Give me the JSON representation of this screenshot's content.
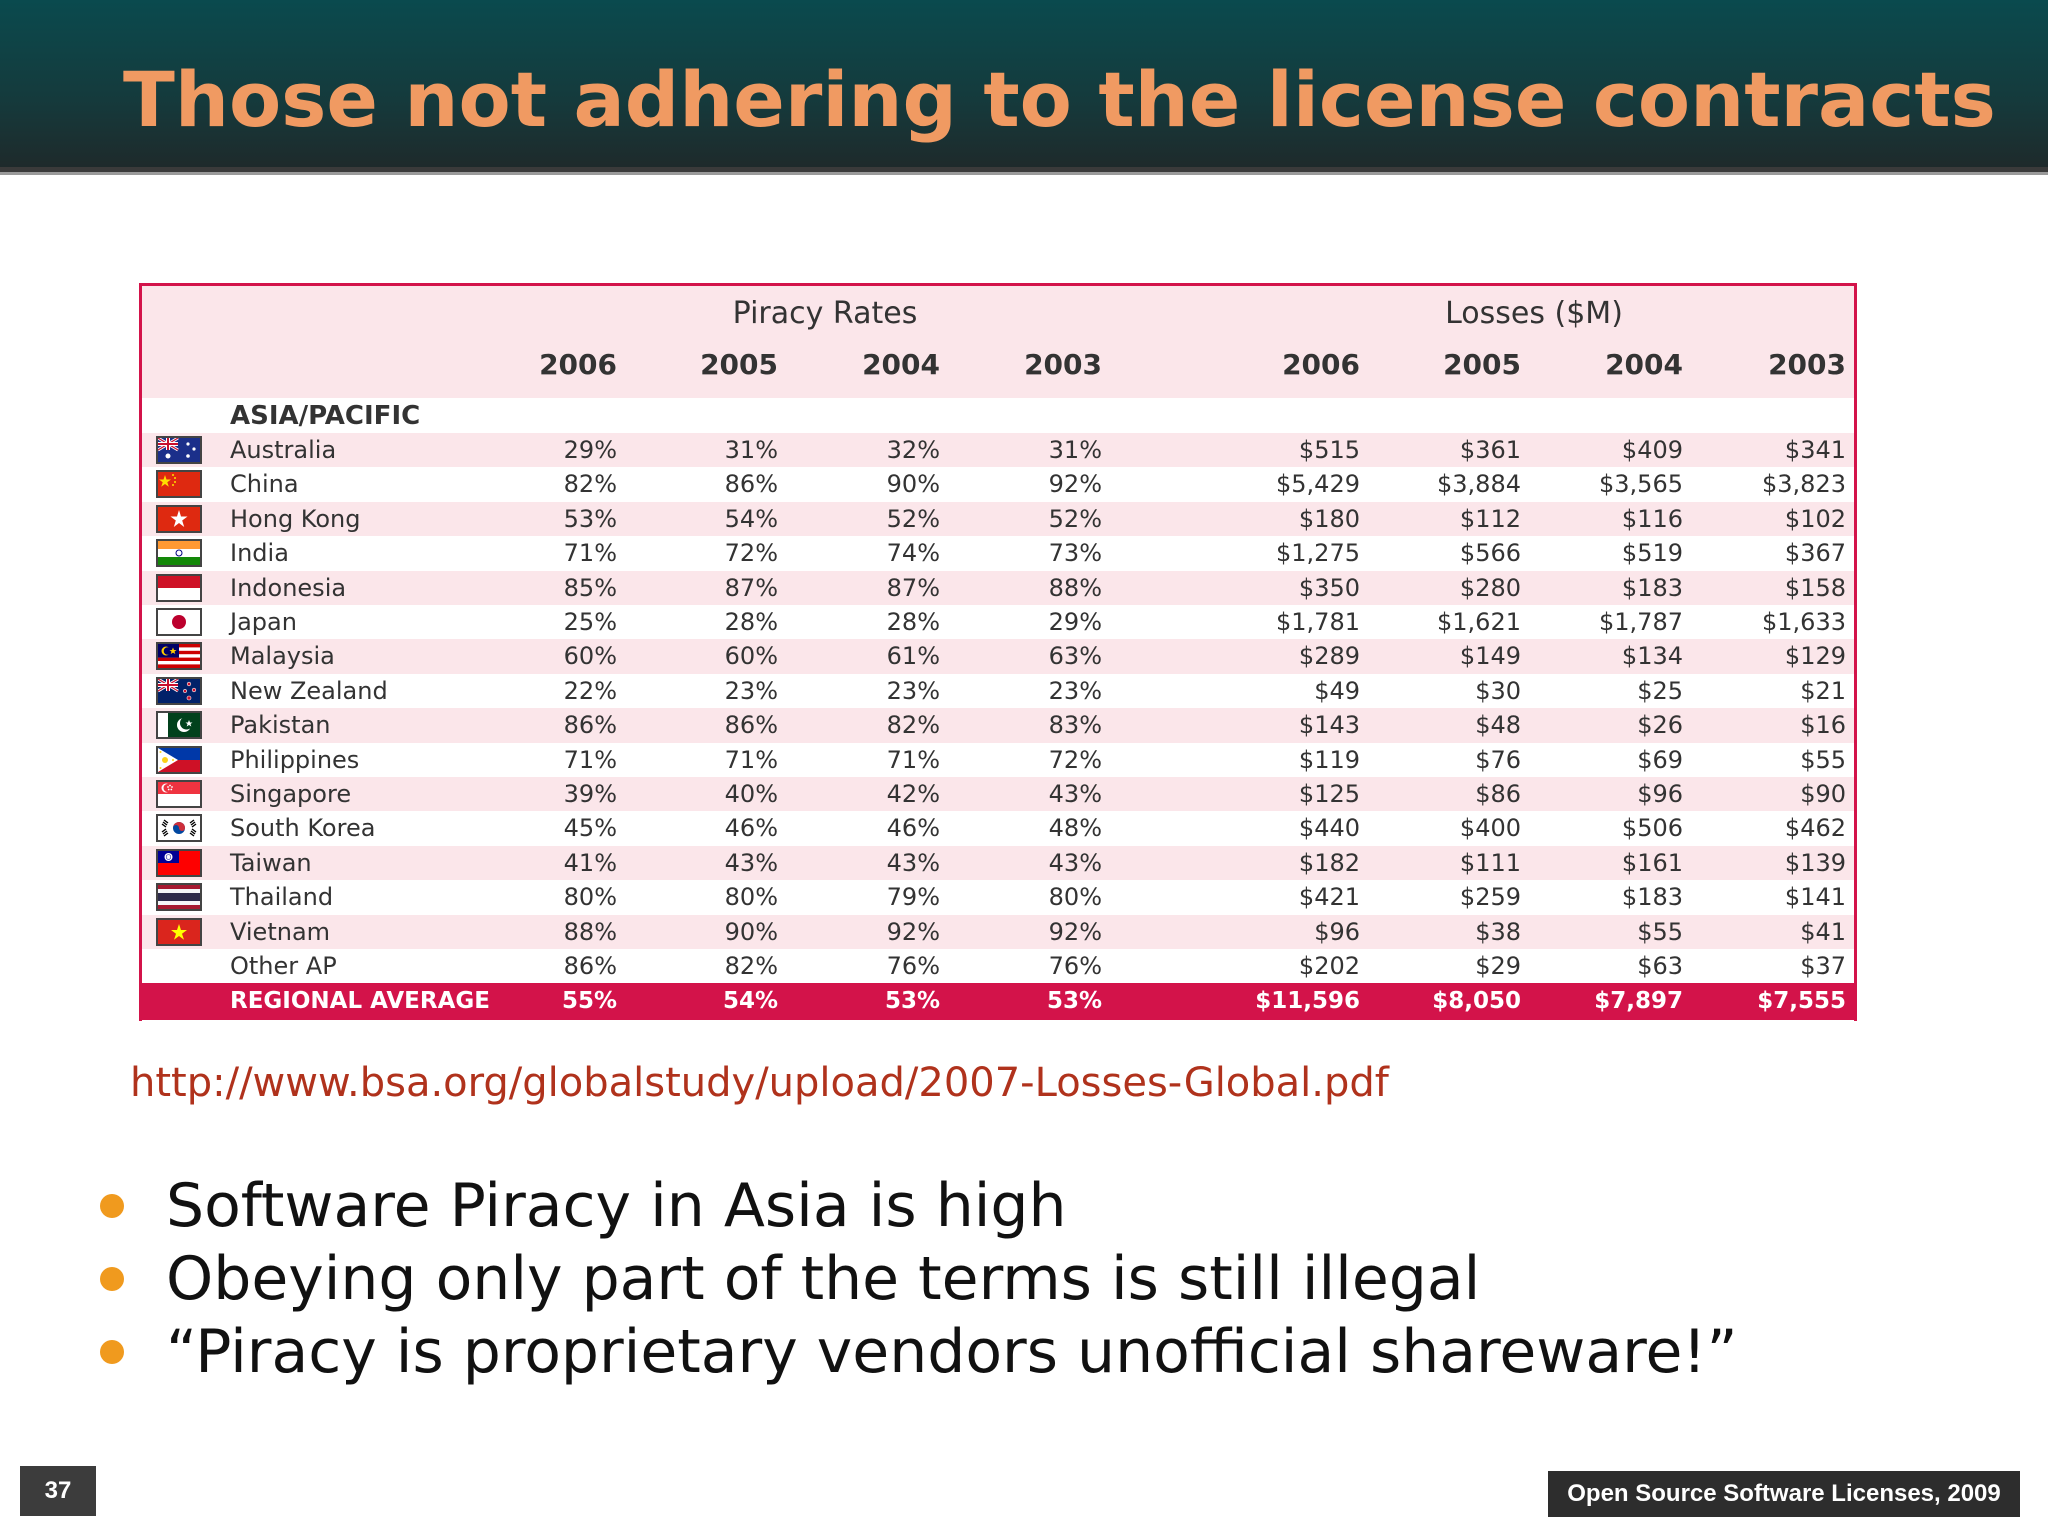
{
  "slide": {
    "title": "Those not adhering to the license contracts",
    "url": "http://www.bsa.org/globalstudy/upload/2007-Losses-Global.pdf",
    "bullets": [
      "Software Piracy in Asia is high",
      "Obeying only part of the terms is still illegal",
      "“Piracy is proprietary vendors unofficial shareware!”"
    ],
    "page_number": "37",
    "footer": "Open Source Software Licenses, 2009"
  },
  "table": {
    "group_headers": [
      "Piracy Rates",
      "Losses ($M)"
    ],
    "years": [
      "2006",
      "2005",
      "2004",
      "2003",
      "2006",
      "2005",
      "2004",
      "2003"
    ],
    "section": "ASIA/PACIFIC",
    "rows": [
      {
        "country": "Australia",
        "flag": "australia-flag-icon",
        "values": [
          "29%",
          "31%",
          "32%",
          "31%",
          "$515",
          "$361",
          "$409",
          "$341"
        ]
      },
      {
        "country": "China",
        "flag": "china-flag-icon",
        "values": [
          "82%",
          "86%",
          "90%",
          "92%",
          "$5,429",
          "$3,884",
          "$3,565",
          "$3,823"
        ]
      },
      {
        "country": "Hong Kong",
        "flag": "hong-kong-flag-icon",
        "values": [
          "53%",
          "54%",
          "52%",
          "52%",
          "$180",
          "$112",
          "$116",
          "$102"
        ]
      },
      {
        "country": "India",
        "flag": "india-flag-icon",
        "values": [
          "71%",
          "72%",
          "74%",
          "73%",
          "$1,275",
          "$566",
          "$519",
          "$367"
        ]
      },
      {
        "country": "Indonesia",
        "flag": "indonesia-flag-icon",
        "values": [
          "85%",
          "87%",
          "87%",
          "88%",
          "$350",
          "$280",
          "$183",
          "$158"
        ]
      },
      {
        "country": "Japan",
        "flag": "japan-flag-icon",
        "values": [
          "25%",
          "28%",
          "28%",
          "29%",
          "$1,781",
          "$1,621",
          "$1,787",
          "$1,633"
        ]
      },
      {
        "country": "Malaysia",
        "flag": "malaysia-flag-icon",
        "values": [
          "60%",
          "60%",
          "61%",
          "63%",
          "$289",
          "$149",
          "$134",
          "$129"
        ]
      },
      {
        "country": "New Zealand",
        "flag": "new-zealand-flag-icon",
        "values": [
          "22%",
          "23%",
          "23%",
          "23%",
          "$49",
          "$30",
          "$25",
          "$21"
        ]
      },
      {
        "country": "Pakistan",
        "flag": "pakistan-flag-icon",
        "values": [
          "86%",
          "86%",
          "82%",
          "83%",
          "$143",
          "$48",
          "$26",
          "$16"
        ]
      },
      {
        "country": "Philippines",
        "flag": "philippines-flag-icon",
        "values": [
          "71%",
          "71%",
          "71%",
          "72%",
          "$119",
          "$76",
          "$69",
          "$55"
        ]
      },
      {
        "country": "Singapore",
        "flag": "singapore-flag-icon",
        "values": [
          "39%",
          "40%",
          "42%",
          "43%",
          "$125",
          "$86",
          "$96",
          "$90"
        ]
      },
      {
        "country": "South Korea",
        "flag": "south-korea-flag-icon",
        "values": [
          "45%",
          "46%",
          "46%",
          "48%",
          "$440",
          "$400",
          "$506",
          "$462"
        ]
      },
      {
        "country": "Taiwan",
        "flag": "taiwan-flag-icon",
        "values": [
          "41%",
          "43%",
          "43%",
          "43%",
          "$182",
          "$111",
          "$161",
          "$139"
        ]
      },
      {
        "country": "Thailand",
        "flag": "thailand-flag-icon",
        "values": [
          "80%",
          "80%",
          "79%",
          "80%",
          "$421",
          "$259",
          "$183",
          "$141"
        ]
      },
      {
        "country": "Vietnam",
        "flag": "vietnam-flag-icon",
        "values": [
          "88%",
          "90%",
          "92%",
          "92%",
          "$96",
          "$38",
          "$55",
          "$41"
        ]
      },
      {
        "country": "Other AP",
        "flag": "",
        "values": [
          "86%",
          "82%",
          "76%",
          "76%",
          "$202",
          "$29",
          "$63",
          "$37"
        ]
      }
    ],
    "average": {
      "label": "REGIONAL AVERAGE",
      "values": [
        "55%",
        "54%",
        "53%",
        "53%",
        "$11,596",
        "$8,050",
        "$7,897",
        "$7,555"
      ]
    },
    "colors": {
      "accent": "#d3134a",
      "band": "#fbe6ea",
      "title": "#f09a62",
      "url": "#b0321c",
      "bullet": "#f09a1e"
    }
  }
}
